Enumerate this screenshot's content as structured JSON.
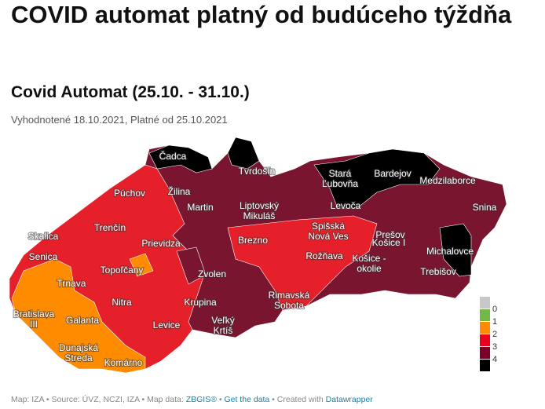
{
  "headline": "COVID automat platný od budúceho týždňa",
  "title": "Covid Automat (25.10. - 31.10.)",
  "subtitle": "Vyhodnotené 18.10.2021, Platné od 25.10.2021",
  "footer": {
    "map": "Map: IZA",
    "sep": " • ",
    "source": "Source: ÚVZ, NCZI, IZA",
    "map_data": "Map data: ",
    "zbgis": "ZBGIS®",
    "get_data": "Get the data",
    "created": "Created with ",
    "datawrapper": "Datawrapper"
  },
  "legend": {
    "labels": [
      "0",
      "1",
      "2",
      "3",
      "4"
    ],
    "colors": [
      "#c8c8c8",
      "#72b844",
      "#ff8c00",
      "#e8001c",
      "#7a0028",
      "#000000"
    ]
  },
  "map_colors": {
    "level2": "#ff8c00",
    "level3": "#e5202a",
    "level4": "#7a1530",
    "black": "#000000"
  },
  "districts": [
    "Čadca",
    "Tvrdošín",
    "Stará Ľubovňa",
    "Bardejov",
    "Medzilaborce",
    "Púchov",
    "Žilina",
    "Martin",
    "Liptovský Mikuláš",
    "Levoča",
    "Prešov",
    "Snina",
    "Skalica",
    "Trenčín",
    "Prievidza",
    "Spišská Nová Ves",
    "Košice I",
    "Senica",
    "Brezno",
    "Rožňava",
    "Košice - okolie",
    "Michalovce",
    "Topoľčany",
    "Trnava",
    "Zvolen",
    "Trebišov",
    "Rimavská Sobota",
    "Bratislava III",
    "Galanta",
    "Nitra",
    "Krupina",
    "Levice",
    "Veľký Krtíš",
    "Dunajská Streda",
    "Komárno"
  ]
}
